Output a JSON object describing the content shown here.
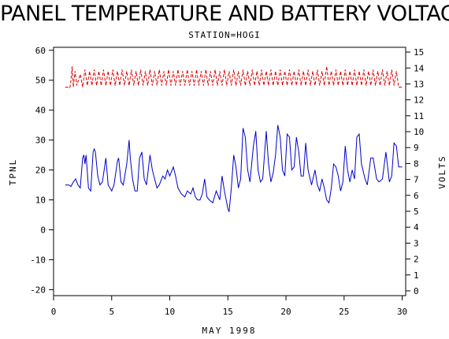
{
  "chart_data": {
    "type": "line",
    "title": "PANEL TEMPERATURE AND BATTERY VOLTAGE",
    "subtitle": "STATION=HOGI",
    "xlabel": "MAY 1998",
    "ylabel_left": "TPNL",
    "ylabel_right": "VOLTS",
    "xlim": [
      0,
      30.3
    ],
    "ylim_left": [
      -22,
      61
    ],
    "ylim_right": [
      -0.3,
      15.3
    ],
    "x_ticks": [
      0,
      5,
      10,
      15,
      20,
      25,
      30
    ],
    "y_left_ticks": [
      -20,
      -10,
      0,
      10,
      20,
      30,
      40,
      50,
      60
    ],
    "y_right_ticks": [
      0,
      1,
      2,
      3,
      4,
      5,
      6,
      7,
      8,
      9,
      10,
      11,
      12,
      13,
      14,
      15
    ],
    "grid": false,
    "legend": "none",
    "series": [
      {
        "axis": "left",
        "color": "#0000cc",
        "style": "solid",
        "points": [
          [
            1.0,
            15
          ],
          [
            1.3,
            15
          ],
          [
            1.5,
            14.5
          ],
          [
            1.7,
            16
          ],
          [
            1.9,
            17
          ],
          [
            2.1,
            15
          ],
          [
            2.3,
            14
          ],
          [
            2.5,
            24
          ],
          [
            2.6,
            25
          ],
          [
            2.7,
            22
          ],
          [
            2.8,
            25
          ],
          [
            3.0,
            14
          ],
          [
            3.2,
            13
          ],
          [
            3.4,
            26
          ],
          [
            3.5,
            27
          ],
          [
            3.6,
            26
          ],
          [
            3.8,
            18
          ],
          [
            4.0,
            15
          ],
          [
            4.2,
            16
          ],
          [
            4.5,
            24
          ],
          [
            4.7,
            15
          ],
          [
            5.0,
            13
          ],
          [
            5.2,
            15
          ],
          [
            5.5,
            23
          ],
          [
            5.6,
            24
          ],
          [
            5.8,
            16
          ],
          [
            6.0,
            15
          ],
          [
            6.3,
            22
          ],
          [
            6.5,
            30
          ],
          [
            6.6,
            24
          ],
          [
            6.8,
            17
          ],
          [
            7.0,
            13
          ],
          [
            7.2,
            13
          ],
          [
            7.4,
            24
          ],
          [
            7.6,
            26
          ],
          [
            7.8,
            17
          ],
          [
            8.0,
            15
          ],
          [
            8.3,
            25
          ],
          [
            8.5,
            20
          ],
          [
            8.7,
            17
          ],
          [
            8.9,
            14
          ],
          [
            9.1,
            15
          ],
          [
            9.4,
            18
          ],
          [
            9.6,
            17
          ],
          [
            9.8,
            20
          ],
          [
            10.0,
            18
          ],
          [
            10.3,
            21
          ],
          [
            10.5,
            18
          ],
          [
            10.7,
            14
          ],
          [
            11.0,
            12
          ],
          [
            11.3,
            11
          ],
          [
            11.5,
            13
          ],
          [
            11.8,
            12
          ],
          [
            12.0,
            14
          ],
          [
            12.2,
            11
          ],
          [
            12.4,
            10
          ],
          [
            12.6,
            10
          ],
          [
            12.8,
            12
          ],
          [
            13.0,
            17
          ],
          [
            13.2,
            11
          ],
          [
            13.4,
            10
          ],
          [
            13.7,
            9
          ],
          [
            14.0,
            13
          ],
          [
            14.3,
            10
          ],
          [
            14.5,
            18
          ],
          [
            14.7,
            13
          ],
          [
            15.0,
            7
          ],
          [
            15.1,
            6
          ],
          [
            15.3,
            14
          ],
          [
            15.5,
            25
          ],
          [
            15.7,
            21
          ],
          [
            15.9,
            14
          ],
          [
            16.1,
            17
          ],
          [
            16.3,
            34
          ],
          [
            16.5,
            31
          ],
          [
            16.7,
            20
          ],
          [
            16.9,
            16
          ],
          [
            17.2,
            28
          ],
          [
            17.4,
            33
          ],
          [
            17.6,
            20
          ],
          [
            17.8,
            16
          ],
          [
            18.0,
            17
          ],
          [
            18.3,
            33
          ],
          [
            18.5,
            22
          ],
          [
            18.7,
            16
          ],
          [
            18.9,
            19
          ],
          [
            19.1,
            25
          ],
          [
            19.3,
            35
          ],
          [
            19.5,
            31
          ],
          [
            19.7,
            20
          ],
          [
            19.9,
            18
          ],
          [
            20.1,
            32
          ],
          [
            20.3,
            31
          ],
          [
            20.5,
            20
          ],
          [
            20.7,
            21
          ],
          [
            20.9,
            31
          ],
          [
            21.1,
            26
          ],
          [
            21.3,
            18
          ],
          [
            21.5,
            18
          ],
          [
            21.7,
            29
          ],
          [
            21.9,
            20
          ],
          [
            22.2,
            15
          ],
          [
            22.5,
            20
          ],
          [
            22.7,
            15
          ],
          [
            22.9,
            13
          ],
          [
            23.1,
            17
          ],
          [
            23.3,
            14
          ],
          [
            23.5,
            10
          ],
          [
            23.7,
            9
          ],
          [
            23.9,
            14
          ],
          [
            24.1,
            22
          ],
          [
            24.3,
            21
          ],
          [
            24.5,
            18
          ],
          [
            24.7,
            13
          ],
          [
            24.9,
            16
          ],
          [
            25.1,
            28
          ],
          [
            25.3,
            20
          ],
          [
            25.5,
            16
          ],
          [
            25.7,
            20
          ],
          [
            25.9,
            17
          ],
          [
            26.1,
            31
          ],
          [
            26.3,
            32
          ],
          [
            26.5,
            22
          ],
          [
            26.8,
            17
          ],
          [
            27.0,
            15
          ],
          [
            27.3,
            24
          ],
          [
            27.5,
            24
          ],
          [
            27.8,
            17
          ],
          [
            28.0,
            16
          ],
          [
            28.3,
            17
          ],
          [
            28.6,
            26
          ],
          [
            28.9,
            16
          ],
          [
            29.1,
            18
          ],
          [
            29.3,
            29
          ],
          [
            29.5,
            28
          ],
          [
            29.7,
            21
          ],
          [
            30.0,
            21
          ]
        ]
      },
      {
        "axis": "right",
        "color": "#dd0000",
        "style": "dashed",
        "points": [
          [
            1.0,
            12.8
          ],
          [
            1.2,
            12.8
          ],
          [
            1.4,
            12.75
          ],
          [
            1.5,
            13.2
          ],
          [
            1.6,
            14.1
          ],
          [
            1.7,
            12.8
          ],
          [
            1.85,
            13.8
          ],
          [
            2.0,
            12.9
          ],
          [
            2.3,
            13.6
          ],
          [
            2.5,
            12.8
          ],
          [
            2.7,
            13.9
          ],
          [
            2.9,
            12.9
          ],
          [
            3.1,
            13.8
          ],
          [
            3.3,
            12.9
          ],
          [
            3.5,
            13.9
          ],
          [
            3.7,
            12.9
          ],
          [
            3.9,
            13.8
          ],
          [
            4.1,
            12.9
          ],
          [
            4.3,
            13.9
          ],
          [
            4.5,
            12.9
          ],
          [
            4.7,
            13.8
          ],
          [
            4.9,
            12.9
          ],
          [
            5.1,
            13.9
          ],
          [
            5.3,
            12.9
          ],
          [
            5.5,
            13.8
          ],
          [
            5.7,
            12.9
          ],
          [
            5.9,
            13.9
          ],
          [
            6.1,
            12.9
          ],
          [
            6.3,
            13.8
          ],
          [
            6.5,
            12.9
          ],
          [
            6.7,
            13.9
          ],
          [
            6.9,
            12.9
          ],
          [
            7.1,
            13.8
          ],
          [
            7.3,
            12.9
          ],
          [
            7.5,
            13.9
          ],
          [
            7.7,
            12.9
          ],
          [
            7.9,
            13.8
          ],
          [
            8.1,
            12.9
          ],
          [
            8.3,
            13.9
          ],
          [
            8.5,
            12.9
          ],
          [
            8.7,
            13.8
          ],
          [
            8.9,
            12.9
          ],
          [
            9.1,
            13.9
          ],
          [
            9.3,
            12.9
          ],
          [
            9.5,
            13.8
          ],
          [
            9.7,
            12.9
          ],
          [
            9.9,
            13.9
          ],
          [
            10.1,
            12.9
          ],
          [
            10.3,
            13.8
          ],
          [
            10.5,
            12.9
          ],
          [
            10.7,
            13.9
          ],
          [
            10.9,
            12.9
          ],
          [
            11.1,
            13.8
          ],
          [
            11.3,
            12.9
          ],
          [
            11.5,
            13.9
          ],
          [
            11.7,
            12.9
          ],
          [
            11.9,
            13.8
          ],
          [
            12.1,
            12.9
          ],
          [
            12.3,
            13.9
          ],
          [
            12.5,
            12.9
          ],
          [
            12.7,
            13.8
          ],
          [
            12.9,
            12.9
          ],
          [
            13.1,
            13.9
          ],
          [
            13.3,
            12.9
          ],
          [
            13.5,
            13.8
          ],
          [
            13.7,
            12.9
          ],
          [
            13.9,
            13.9
          ],
          [
            14.1,
            12.9
          ],
          [
            14.3,
            13.8
          ],
          [
            14.5,
            12.9
          ],
          [
            14.7,
            13.9
          ],
          [
            14.9,
            12.9
          ],
          [
            15.1,
            13.8
          ],
          [
            15.3,
            12.9
          ],
          [
            15.5,
            13.9
          ],
          [
            15.7,
            12.9
          ],
          [
            15.9,
            13.8
          ],
          [
            16.1,
            12.9
          ],
          [
            16.3,
            13.9
          ],
          [
            16.5,
            12.9
          ],
          [
            16.7,
            13.8
          ],
          [
            16.9,
            12.9
          ],
          [
            17.1,
            13.9
          ],
          [
            17.3,
            12.9
          ],
          [
            17.5,
            13.8
          ],
          [
            17.7,
            12.9
          ],
          [
            17.9,
            13.9
          ],
          [
            18.1,
            12.9
          ],
          [
            18.3,
            13.8
          ],
          [
            18.5,
            12.9
          ],
          [
            18.7,
            13.9
          ],
          [
            18.9,
            12.9
          ],
          [
            19.1,
            13.8
          ],
          [
            19.3,
            12.9
          ],
          [
            19.5,
            13.9
          ],
          [
            19.7,
            12.9
          ],
          [
            19.9,
            13.8
          ],
          [
            20.1,
            12.9
          ],
          [
            20.3,
            13.9
          ],
          [
            20.5,
            12.9
          ],
          [
            20.7,
            13.8
          ],
          [
            20.9,
            12.9
          ],
          [
            21.1,
            13.9
          ],
          [
            21.3,
            12.9
          ],
          [
            21.5,
            13.8
          ],
          [
            21.7,
            12.9
          ],
          [
            21.9,
            13.9
          ],
          [
            22.1,
            12.9
          ],
          [
            22.3,
            13.8
          ],
          [
            22.5,
            12.9
          ],
          [
            22.7,
            13.9
          ],
          [
            22.9,
            12.9
          ],
          [
            23.1,
            13.8
          ],
          [
            23.3,
            12.9
          ],
          [
            23.5,
            14.1
          ],
          [
            23.7,
            12.9
          ],
          [
            23.9,
            13.8
          ],
          [
            24.1,
            12.9
          ],
          [
            24.3,
            13.9
          ],
          [
            24.5,
            12.9
          ],
          [
            24.7,
            13.8
          ],
          [
            24.9,
            12.9
          ],
          [
            25.1,
            13.9
          ],
          [
            25.3,
            12.9
          ],
          [
            25.5,
            13.8
          ],
          [
            25.7,
            12.9
          ],
          [
            25.9,
            13.9
          ],
          [
            26.1,
            12.9
          ],
          [
            26.3,
            13.8
          ],
          [
            26.5,
            12.9
          ],
          [
            26.7,
            13.9
          ],
          [
            26.9,
            12.9
          ],
          [
            27.1,
            13.8
          ],
          [
            27.3,
            12.9
          ],
          [
            27.5,
            13.9
          ],
          [
            27.7,
            12.9
          ],
          [
            27.9,
            13.8
          ],
          [
            28.1,
            12.9
          ],
          [
            28.3,
            13.9
          ],
          [
            28.5,
            12.9
          ],
          [
            28.7,
            13.8
          ],
          [
            28.9,
            12.9
          ],
          [
            29.1,
            13.9
          ],
          [
            29.3,
            12.9
          ],
          [
            29.5,
            13.8
          ],
          [
            29.7,
            12.8
          ],
          [
            29.9,
            12.8
          ],
          [
            30.0,
            12.8
          ]
        ]
      }
    ]
  }
}
